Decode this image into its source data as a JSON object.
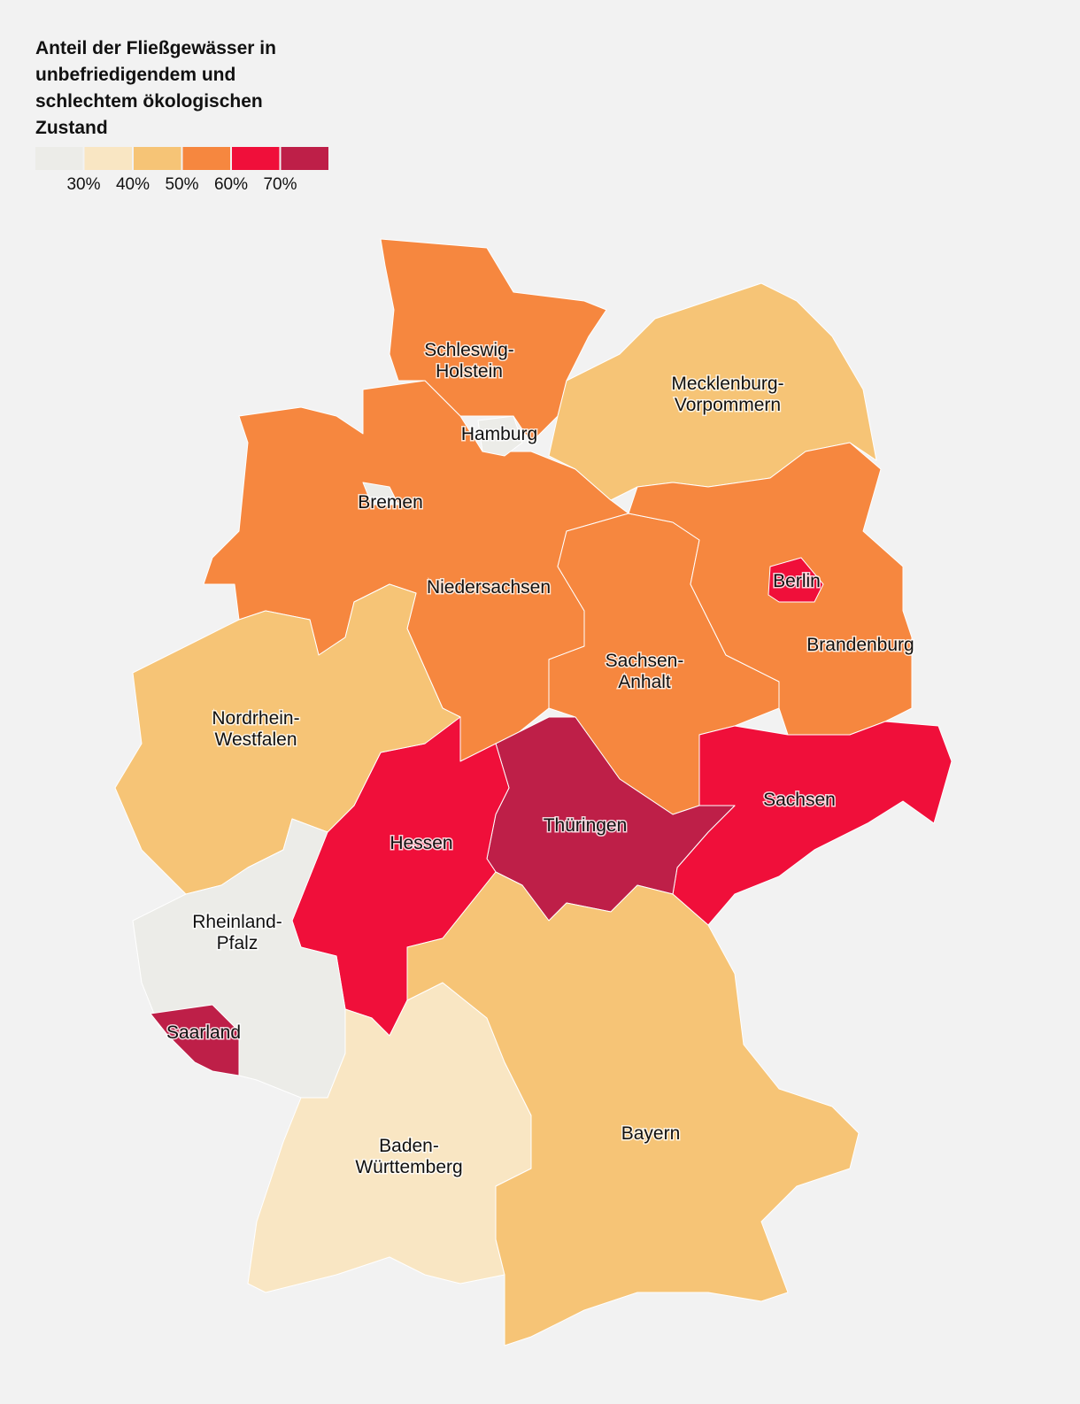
{
  "title": "Anteil der Fließgewässer in unbefriedigendem und schlechtem ökologischen Zustand",
  "legend": {
    "colors": [
      "#ecece8",
      "#f9e6c3",
      "#f6c476",
      "#f6873f",
      "#f00f3a",
      "#be1f48"
    ],
    "ticks": [
      {
        "value": 30,
        "label": "30%"
      },
      {
        "value": 40,
        "label": "40%"
      },
      {
        "value": 50,
        "label": "50%"
      },
      {
        "value": 60,
        "label": "60%"
      },
      {
        "value": 70,
        "label": "70%"
      }
    ]
  },
  "regions": [
    {
      "label": [
        "Schleswig-",
        "Holstein"
      ],
      "color": "#f6873f"
    },
    {
      "label": [
        "Hamburg"
      ],
      "color": "#ecece8"
    },
    {
      "label": [
        "Mecklenburg-",
        "Vorpommern"
      ],
      "color": "#f6c476"
    },
    {
      "label": [
        "Niedersachsen"
      ],
      "color": "#f6873f"
    },
    {
      "label": [
        "Bremen"
      ],
      "color": "#ecece8"
    },
    {
      "label": [
        "Sachsen-",
        "Anhalt"
      ],
      "color": "#f6873f"
    },
    {
      "label": [
        "Brandenburg"
      ],
      "color": "#f6873f"
    },
    {
      "label": [
        "Berlin"
      ],
      "color": "#f00f3a"
    },
    {
      "label": [
        "Sachsen"
      ],
      "color": "#f00f3a"
    },
    {
      "label": [
        "Thüringen"
      ],
      "color": "#be1f48"
    },
    {
      "label": [
        "Hessen"
      ],
      "color": "#f00f3a"
    },
    {
      "label": [
        "Nordrhein-",
        "Westfalen"
      ],
      "color": "#f6c476"
    },
    {
      "label": [
        "Rheinland-",
        "Pfalz"
      ],
      "color": "#ecece8"
    },
    {
      "label": [
        "Saarland"
      ],
      "color": "#be1f48"
    },
    {
      "label": [
        "Baden-",
        "Württemberg"
      ],
      "color": "#f9e6c3"
    },
    {
      "label": [
        "Bayern"
      ],
      "color": "#f6c476"
    }
  ]
}
